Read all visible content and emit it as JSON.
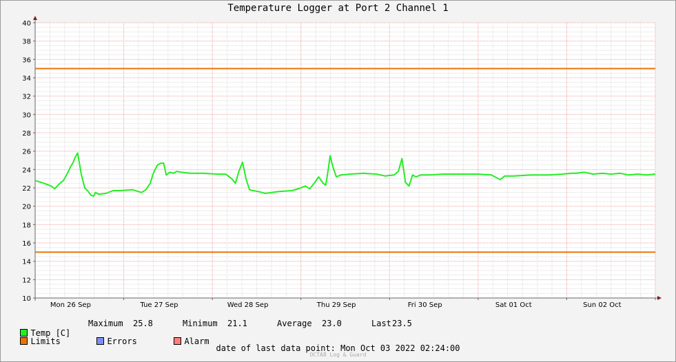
{
  "chart_data": {
    "type": "line",
    "title": "Temperature Logger at Port 2 Channel 1",
    "ylim": [
      10,
      40
    ],
    "yticks": [
      10,
      12,
      14,
      16,
      18,
      20,
      22,
      24,
      26,
      28,
      30,
      32,
      34,
      36,
      38,
      40
    ],
    "xlim_days": [
      0,
      7
    ],
    "x_tick_labels": [
      "Mon 26 Sep",
      "Tue 27 Sep",
      "Wed 28 Sep",
      "Thu 29 Sep",
      "Fri 30 Sep",
      "Sat 01 Oct",
      "Sun 02 Oct"
    ],
    "grid": true,
    "limits": {
      "upper": 35,
      "lower": 15,
      "color": "#e87408"
    },
    "series": [
      {
        "name": "Temp [C]",
        "color": "#22ee22",
        "x_days": [
          0.0,
          0.1,
          0.18,
          0.22,
          0.28,
          0.32,
          0.36,
          0.4,
          0.43,
          0.45,
          0.48,
          0.52,
          0.56,
          0.6,
          0.63,
          0.66,
          0.68,
          0.72,
          0.8,
          0.88,
          0.95,
          1.1,
          1.2,
          1.25,
          1.3,
          1.33,
          1.38,
          1.42,
          1.45,
          1.48,
          1.52,
          1.56,
          1.6,
          1.65,
          1.75,
          1.9,
          2.05,
          2.15,
          2.22,
          2.26,
          2.3,
          2.34,
          2.38,
          2.42,
          2.46,
          2.52,
          2.6,
          2.75,
          2.9,
          3.0,
          3.05,
          3.1,
          3.15,
          3.2,
          3.25,
          3.28,
          3.3,
          3.33,
          3.36,
          3.4,
          3.45,
          3.55,
          3.7,
          3.85,
          3.95,
          4.05,
          4.1,
          4.14,
          4.18,
          4.22,
          4.26,
          4.3,
          4.35,
          4.45,
          4.6,
          4.8,
          5.0,
          5.15,
          5.25,
          5.3,
          5.4,
          5.6,
          5.8,
          5.95,
          6.05,
          6.1,
          6.2,
          6.3,
          6.4,
          6.5,
          6.6,
          6.7,
          6.8,
          6.9,
          7.0
        ],
        "values": [
          22.8,
          22.5,
          22.2,
          21.9,
          22.5,
          22.8,
          23.5,
          24.3,
          24.8,
          25.3,
          25.8,
          23.5,
          22.0,
          21.6,
          21.2,
          21.1,
          21.5,
          21.3,
          21.4,
          21.7,
          21.7,
          21.8,
          21.5,
          21.8,
          22.5,
          23.5,
          24.5,
          24.7,
          24.7,
          23.4,
          23.7,
          23.6,
          23.8,
          23.7,
          23.6,
          23.6,
          23.5,
          23.5,
          23.0,
          22.5,
          23.8,
          24.8,
          23.0,
          21.8,
          21.7,
          21.6,
          21.4,
          21.6,
          21.7,
          22.0,
          22.2,
          21.9,
          22.5,
          23.2,
          22.5,
          22.3,
          23.5,
          25.5,
          24.3,
          23.2,
          23.4,
          23.5,
          23.6,
          23.5,
          23.3,
          23.4,
          23.8,
          25.2,
          22.6,
          22.2,
          23.4,
          23.2,
          23.4,
          23.4,
          23.5,
          23.5,
          23.5,
          23.4,
          22.9,
          23.3,
          23.3,
          23.4,
          23.4,
          23.5,
          23.6,
          23.6,
          23.7,
          23.5,
          23.6,
          23.5,
          23.6,
          23.4,
          23.5,
          23.4,
          23.5
        ]
      }
    ],
    "stats": {
      "maximum_label": "Maximum",
      "maximum": "25.8",
      "minimum_label": "Minimum",
      "minimum": "21.1",
      "average_label": "Average",
      "average": "23.0",
      "last_label": "Last",
      "last": "23.5"
    },
    "legend": {
      "temp": {
        "label": "Temp [C]",
        "color": "#22ee22"
      },
      "limits": {
        "label": "Limits",
        "color": "#e87408"
      },
      "errors": {
        "label": "Errors",
        "color": "#7b8fff"
      },
      "alarm": {
        "label": "Alarm",
        "color": "#ff7f7f"
      }
    }
  },
  "footer": {
    "last_data_point": "date of last data point:  Mon Oct 03 2022 02:24:00",
    "credit": "OCTA8 Log & Guard"
  }
}
